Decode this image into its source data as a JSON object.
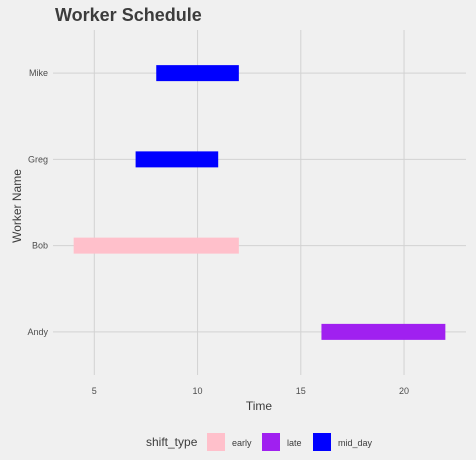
{
  "chart_data": {
    "type": "bar",
    "orientation": "horizontal-range",
    "title": "Worker Schedule",
    "xlabel": "Time",
    "ylabel": "Worker Name",
    "xlim": [
      3,
      23
    ],
    "xticks": [
      5,
      10,
      15,
      20
    ],
    "categories": [
      "Andy",
      "Bob",
      "Greg",
      "Mike"
    ],
    "bars": [
      {
        "worker": "Mike",
        "start": 8,
        "end": 12,
        "shift_type": "mid_day"
      },
      {
        "worker": "Greg",
        "start": 7,
        "end": 11,
        "shift_type": "mid_day"
      },
      {
        "worker": "Bob",
        "start": 4,
        "end": 12,
        "shift_type": "early"
      },
      {
        "worker": "Andy",
        "start": 16,
        "end": 22,
        "shift_type": "late"
      }
    ],
    "legend": {
      "title": "shift_type",
      "position": "bottom",
      "entries": [
        {
          "label": "early",
          "color": "#ffc0cb"
        },
        {
          "label": "late",
          "color": "#a020f0"
        },
        {
          "label": "mid_day",
          "color": "#0000ff"
        }
      ]
    },
    "grid": true,
    "background": "#f0f0f0"
  }
}
